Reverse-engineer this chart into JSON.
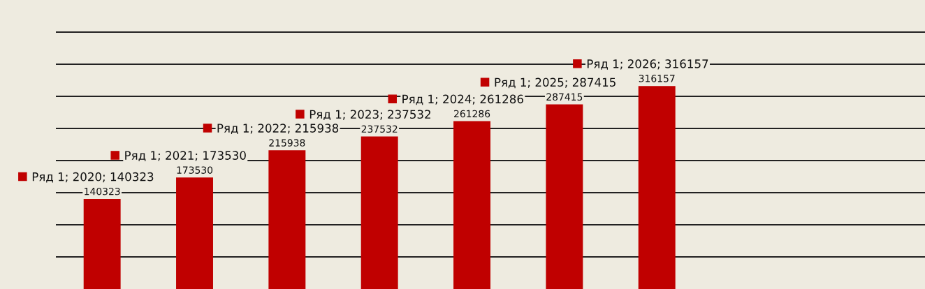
{
  "chart_data": {
    "type": "bar",
    "categories": [
      null,
      null,
      null,
      null,
      null,
      null,
      null
    ],
    "series": [
      {
        "color": "#c00000",
        "values": [
          140323,
          173530,
          215938,
          237532,
          261286,
          287415,
          316157
        ]
      }
    ],
    "data_labels": true,
    "annotations": [
      {
        "text": "Ряд 1; 2020; 140323",
        "y": 140323
      },
      {
        "text": "Ряд 1; 2021; 173530",
        "y": 173530
      },
      {
        "text": "Ряд 1; 2022; 215938",
        "y": 215938
      },
      {
        "text": "Ряд 1; 2023; 237532",
        "y": 237532
      },
      {
        "text": "Ряд 1; 2024; 261286",
        "y": 261286
      },
      {
        "text": "Ряд 1; 2025; 287415",
        "y": 287415
      },
      {
        "text": "Ряд 1; 2026; 316157",
        "y": 316157
      }
    ],
    "ylim": [
      0,
      450000
    ],
    "yticks": [
      {
        "value": 50000,
        "label": null
      },
      {
        "value": 100000,
        "label": null
      },
      {
        "value": 150000,
        "label": null
      },
      {
        "value": 200000,
        "label": null
      },
      {
        "value": 250000,
        "label": null
      },
      {
        "value": 300000,
        "label": null
      },
      {
        "value": 350000,
        "label": null
      },
      {
        "value": 400000,
        "label": null
      }
    ],
    "grid": "y",
    "tick_labels": false
  }
}
